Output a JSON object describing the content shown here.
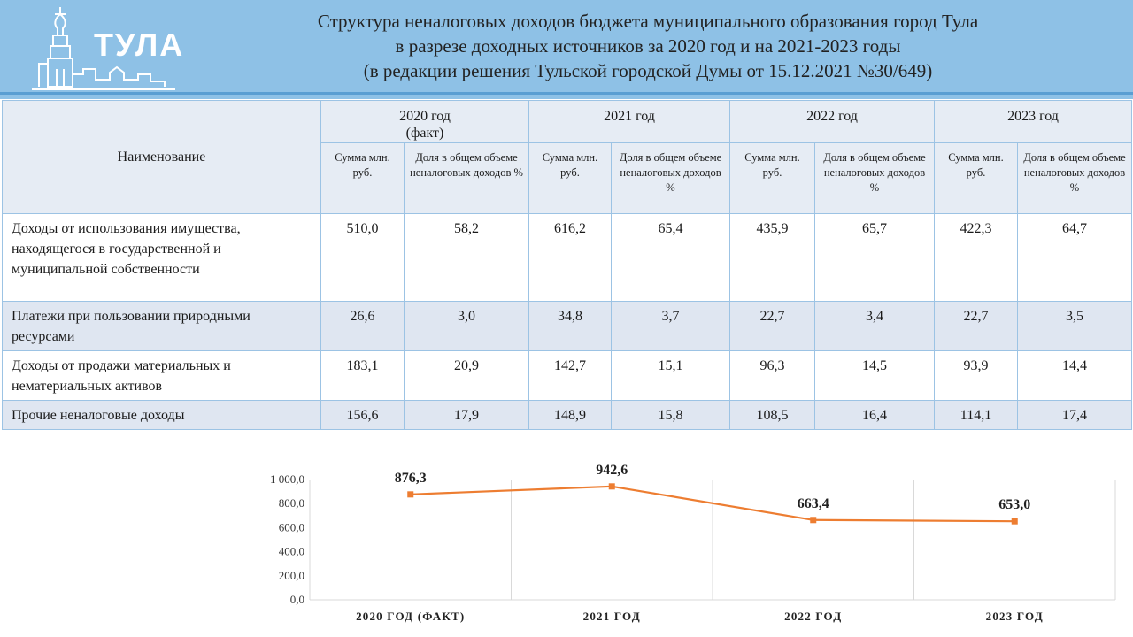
{
  "header": {
    "logo_text": "ТУЛА",
    "title_lines": [
      "Структура неналоговых доходов бюджета муниципального образования город Тула",
      "в разрезе доходных источников за 2020 год и на 2021-2023 годы",
      "(в редакции решения Тульской городской Думы от 15.12.2021 №30/649)"
    ]
  },
  "table": {
    "name_header": "Наименование",
    "years": [
      {
        "label": "2020 год (факт)"
      },
      {
        "label": "2021 год"
      },
      {
        "label": "2022 год"
      },
      {
        "label": "2023 год"
      }
    ],
    "sub_headers": [
      {
        "sum": "Сумма млн. руб.",
        "share": "Доля в общем объеме неналоговых доходов %"
      },
      {
        "sum": "Сумма млн. руб.",
        "share": "Доля в общем объеме неналоговых доходов %"
      },
      {
        "sum": "Сумма млн. руб.",
        "share": "Доля в общем объеме неналоговых доходов %"
      },
      {
        "sum": "Сумма млн. руб.",
        "share": "Доля в общем объеме неналоговых доходов %"
      }
    ],
    "rows": [
      {
        "name": "Доходы от использования имущества, находящегося в государственной и муниципальной собственности",
        "values": [
          "510,0",
          "58,2",
          "616,2",
          "65,4",
          "435,9",
          "65,7",
          "422,3",
          "64,7"
        ]
      },
      {
        "name": "Платежи при пользовании природными ресурсами",
        "values": [
          "26,6",
          "3,0",
          "34,8",
          "3,7",
          "22,7",
          "3,4",
          "22,7",
          "3,5"
        ]
      },
      {
        "name": "Доходы от продажи материальных и нематериальных активов",
        "values": [
          "183,1",
          "20,9",
          "142,7",
          "15,1",
          "96,3",
          "14,5",
          "93,9",
          "14,4"
        ]
      },
      {
        "name": "Прочие неналоговые доходы",
        "values": [
          "156,6",
          "17,9",
          "148,9",
          "15,8",
          "108,5",
          "16,4",
          "114,1",
          "17,4"
        ]
      }
    ]
  },
  "chart_data": {
    "type": "line",
    "categories": [
      "2020 ГОД (ФАКТ)",
      "2021 ГОД",
      "2022 ГОД",
      "2023 ГОД"
    ],
    "series": [
      {
        "values": [
          876.3,
          942.6,
          663.4,
          653.0
        ],
        "labels": [
          "876,3",
          "942,6",
          "663,4",
          "653,0"
        ]
      }
    ],
    "ylim": [
      0,
      1000
    ],
    "yticks": [
      {
        "value": 0,
        "label": "0,0"
      },
      {
        "value": 200,
        "label": "200,0"
      },
      {
        "value": 400,
        "label": "400,0"
      },
      {
        "value": 600,
        "label": "600,0"
      },
      {
        "value": 800,
        "label": "800,0"
      },
      {
        "value": 1000,
        "label": "1 000,0"
      }
    ],
    "line_color": "#ed7d31",
    "grid": "vertical",
    "title": "",
    "xlabel": "",
    "ylabel": ""
  }
}
